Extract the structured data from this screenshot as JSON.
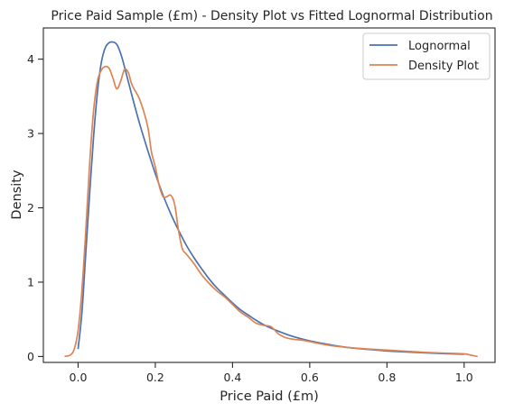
{
  "chart_data": {
    "type": "line",
    "title": "Price Paid Sample (£m) - Density Plot vs Fitted Lognormal Distribution",
    "xlabel": "Price Paid (£m)",
    "ylabel": "Density",
    "xlim": [
      -0.09,
      1.08
    ],
    "ylim": [
      -0.08,
      4.42
    ],
    "xticks": [
      0.0,
      0.2,
      0.4,
      0.6,
      0.8,
      1.0
    ],
    "xtick_labels": [
      "0.0",
      "0.2",
      "0.4",
      "0.6",
      "0.8",
      "1.0"
    ],
    "yticks": [
      0,
      1,
      2,
      3,
      4
    ],
    "ytick_labels": [
      "0",
      "1",
      "2",
      "3",
      "4"
    ],
    "grid": false,
    "legend_position": "top-right",
    "series": [
      {
        "name": "Lognormal",
        "color": "#4c72b0",
        "points": [
          [
            0.0,
            0.1
          ],
          [
            0.01,
            0.6
          ],
          [
            0.02,
            1.4
          ],
          [
            0.03,
            2.2
          ],
          [
            0.04,
            2.95
          ],
          [
            0.05,
            3.55
          ],
          [
            0.06,
            3.95
          ],
          [
            0.07,
            4.15
          ],
          [
            0.08,
            4.22
          ],
          [
            0.09,
            4.23
          ],
          [
            0.1,
            4.2
          ],
          [
            0.11,
            4.08
          ],
          [
            0.12,
            3.9
          ],
          [
            0.14,
            3.5
          ],
          [
            0.16,
            3.12
          ],
          [
            0.18,
            2.78
          ],
          [
            0.2,
            2.46
          ],
          [
            0.22,
            2.17
          ],
          [
            0.24,
            1.92
          ],
          [
            0.26,
            1.7
          ],
          [
            0.28,
            1.5
          ],
          [
            0.3,
            1.33
          ],
          [
            0.32,
            1.18
          ],
          [
            0.34,
            1.04
          ],
          [
            0.36,
            0.92
          ],
          [
            0.38,
            0.82
          ],
          [
            0.4,
            0.72
          ],
          [
            0.42,
            0.63
          ],
          [
            0.44,
            0.56
          ],
          [
            0.46,
            0.49
          ],
          [
            0.48,
            0.43
          ],
          [
            0.5,
            0.38
          ],
          [
            0.55,
            0.28
          ],
          [
            0.6,
            0.21
          ],
          [
            0.65,
            0.16
          ],
          [
            0.7,
            0.12
          ],
          [
            0.75,
            0.095
          ],
          [
            0.8,
            0.075
          ],
          [
            0.85,
            0.06
          ],
          [
            0.9,
            0.048
          ],
          [
            0.95,
            0.038
          ],
          [
            1.0,
            0.03
          ]
        ]
      },
      {
        "name": "Density Plot",
        "color": "#dd8452",
        "points": [
          [
            -0.035,
            0.0
          ],
          [
            -0.02,
            0.02
          ],
          [
            -0.01,
            0.1
          ],
          [
            0.0,
            0.35
          ],
          [
            0.01,
            0.9
          ],
          [
            0.02,
            1.7
          ],
          [
            0.03,
            2.6
          ],
          [
            0.04,
            3.3
          ],
          [
            0.05,
            3.7
          ],
          [
            0.06,
            3.85
          ],
          [
            0.07,
            3.9
          ],
          [
            0.08,
            3.88
          ],
          [
            0.09,
            3.75
          ],
          [
            0.1,
            3.6
          ],
          [
            0.11,
            3.7
          ],
          [
            0.12,
            3.86
          ],
          [
            0.13,
            3.82
          ],
          [
            0.14,
            3.65
          ],
          [
            0.16,
            3.45
          ],
          [
            0.18,
            3.1
          ],
          [
            0.19,
            2.75
          ],
          [
            0.2,
            2.55
          ],
          [
            0.21,
            2.3
          ],
          [
            0.22,
            2.15
          ],
          [
            0.23,
            2.15
          ],
          [
            0.24,
            2.17
          ],
          [
            0.25,
            2.05
          ],
          [
            0.26,
            1.7
          ],
          [
            0.27,
            1.45
          ],
          [
            0.28,
            1.38
          ],
          [
            0.3,
            1.25
          ],
          [
            0.32,
            1.1
          ],
          [
            0.34,
            0.98
          ],
          [
            0.36,
            0.88
          ],
          [
            0.38,
            0.8
          ],
          [
            0.4,
            0.7
          ],
          [
            0.42,
            0.6
          ],
          [
            0.44,
            0.53
          ],
          [
            0.46,
            0.45
          ],
          [
            0.48,
            0.42
          ],
          [
            0.5,
            0.4
          ],
          [
            0.52,
            0.3
          ],
          [
            0.54,
            0.25
          ],
          [
            0.56,
            0.23
          ],
          [
            0.58,
            0.22
          ],
          [
            0.6,
            0.2
          ],
          [
            0.65,
            0.15
          ],
          [
            0.7,
            0.12
          ],
          [
            0.75,
            0.1
          ],
          [
            0.8,
            0.085
          ],
          [
            0.85,
            0.07
          ],
          [
            0.9,
            0.055
          ],
          [
            0.95,
            0.045
          ],
          [
            1.0,
            0.035
          ],
          [
            1.02,
            0.015
          ],
          [
            1.035,
            0.0
          ]
        ]
      }
    ]
  }
}
